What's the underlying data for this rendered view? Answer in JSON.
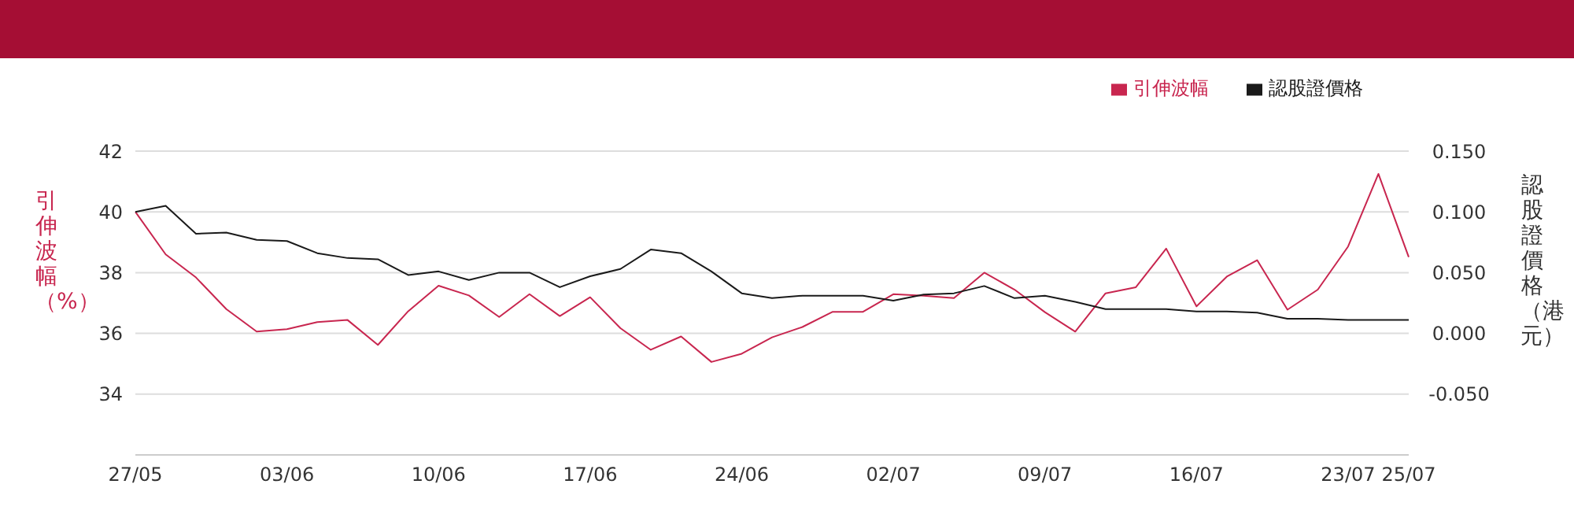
{
  "chart_data": {
    "type": "line",
    "ylabel": "引伸波幅（%）",
    "y2label": "認股證價格（港元）",
    "categories": [
      "27/05",
      null,
      null,
      null,
      null,
      "03/06",
      null,
      null,
      null,
      null,
      "10/06",
      null,
      null,
      null,
      null,
      "17/06",
      null,
      null,
      null,
      null,
      "24/06",
      null,
      null,
      null,
      null,
      "02/07",
      null,
      null,
      null,
      null,
      "09/07",
      null,
      null,
      null,
      null,
      "16/07",
      null,
      null,
      null,
      null,
      "23/07",
      null,
      "25/07"
    ],
    "series": [
      {
        "name": "引伸波幅",
        "color": "#c8264f",
        "values": [
          40,
          38.6,
          37.84,
          36.8,
          36.06,
          36.14,
          36.37,
          36.44,
          35.62,
          36.73,
          37.57,
          37.25,
          36.54,
          37.29,
          36.57,
          37.19,
          36.17,
          35.46,
          35.9,
          35.06,
          35.33,
          35.87,
          36.21,
          36.71,
          36.71,
          37.29,
          37.24,
          37.16,
          38.0,
          37.44,
          36.7,
          36.06,
          37.32,
          37.52,
          38.79,
          36.89,
          37.87,
          38.41,
          36.78,
          37.44,
          38.86,
          41.25,
          38.51
        ]
      },
      {
        "name": "認股證價格",
        "color": "#1a1a1a",
        "axis": "y2",
        "values": [
          0.1,
          0.105,
          0.082,
          0.083,
          0.077,
          0.076,
          0.066,
          0.062,
          0.061,
          0.048,
          0.051,
          0.044,
          0.05,
          0.05,
          0.038,
          0.047,
          0.053,
          0.069,
          0.066,
          0.051,
          0.033,
          0.029,
          0.031,
          0.031,
          0.031,
          0.027,
          0.032,
          0.033,
          0.039,
          0.029,
          0.031,
          0.026,
          0.02,
          0.02,
          0.02,
          0.018,
          0.018,
          0.017,
          0.012,
          0.012,
          0.011,
          0.011,
          0.011
        ]
      }
    ],
    "ylim": [
      32,
      42
    ],
    "yticks": [
      34,
      36,
      38,
      40,
      42
    ],
    "y2lim": [
      -0.1,
      0.15
    ],
    "y2ticks": [
      {
        "value": -0.05,
        "label": "-0.050"
      },
      {
        "value": 0,
        "label": "0.000"
      },
      {
        "value": 0.05,
        "label": "0.050"
      },
      {
        "value": 0.1,
        "label": "0.100"
      },
      {
        "value": 0.15,
        "label": "0.150"
      }
    ],
    "grid": "y",
    "legend": "top right",
    "marker": "none",
    "line_style": "solid"
  }
}
